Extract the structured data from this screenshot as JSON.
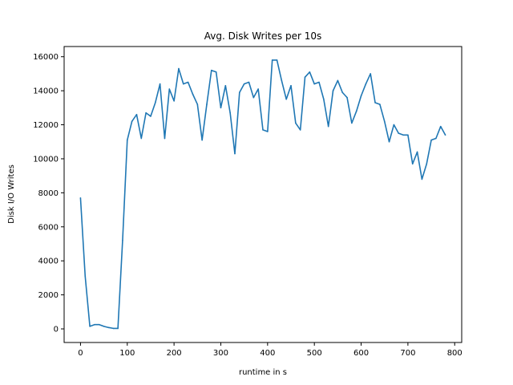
{
  "chart_data": {
    "type": "line",
    "title": "Avg. Disk Writes per 10s",
    "xlabel": "runtime in s",
    "ylabel": "Disk I/O Writes",
    "xlim": [
      -35,
      815
    ],
    "ylim": [
      -800,
      16600
    ],
    "x_ticks": [
      0,
      100,
      200,
      300,
      400,
      500,
      600,
      700,
      800
    ],
    "y_ticks": [
      0,
      2000,
      4000,
      6000,
      8000,
      10000,
      12000,
      14000,
      16000
    ],
    "grid": false,
    "legend": "none",
    "series": [
      {
        "color": "#1f77b4",
        "x": [
          0,
          10,
          20,
          30,
          40,
          50,
          60,
          70,
          80,
          90,
          100,
          110,
          120,
          130,
          140,
          150,
          160,
          170,
          180,
          190,
          200,
          210,
          220,
          230,
          240,
          250,
          260,
          270,
          280,
          290,
          300,
          310,
          320,
          330,
          340,
          350,
          360,
          370,
          380,
          390,
          400,
          410,
          420,
          430,
          440,
          450,
          460,
          470,
          480,
          490,
          500,
          510,
          520,
          530,
          540,
          550,
          560,
          570,
          580,
          590,
          600,
          610,
          620,
          630,
          640,
          650,
          660,
          670,
          680,
          690,
          700,
          710,
          720,
          730,
          740,
          750,
          760,
          770,
          780
        ],
        "values": [
          7700,
          3100,
          150,
          250,
          250,
          150,
          80,
          30,
          30,
          5200,
          11100,
          12200,
          12600,
          11200,
          12700,
          12500,
          13300,
          14400,
          11200,
          14100,
          13400,
          15300,
          14400,
          14500,
          13800,
          13200,
          11100,
          13200,
          15200,
          15100,
          13000,
          14300,
          12700,
          10300,
          13900,
          14400,
          14500,
          13600,
          14100,
          11700,
          11600,
          15800,
          15800,
          14600,
          13500,
          14300,
          12100,
          11700,
          14800,
          15100,
          14400,
          14500,
          13500,
          11900,
          14000,
          14600,
          13900,
          13600,
          12100,
          12800,
          13700,
          14400,
          15000,
          13300,
          13200,
          12200,
          11000,
          12000,
          11500,
          11400,
          11400,
          9700,
          10400,
          8800,
          9700,
          11100,
          11200,
          11900,
          11400
        ]
      }
    ]
  }
}
